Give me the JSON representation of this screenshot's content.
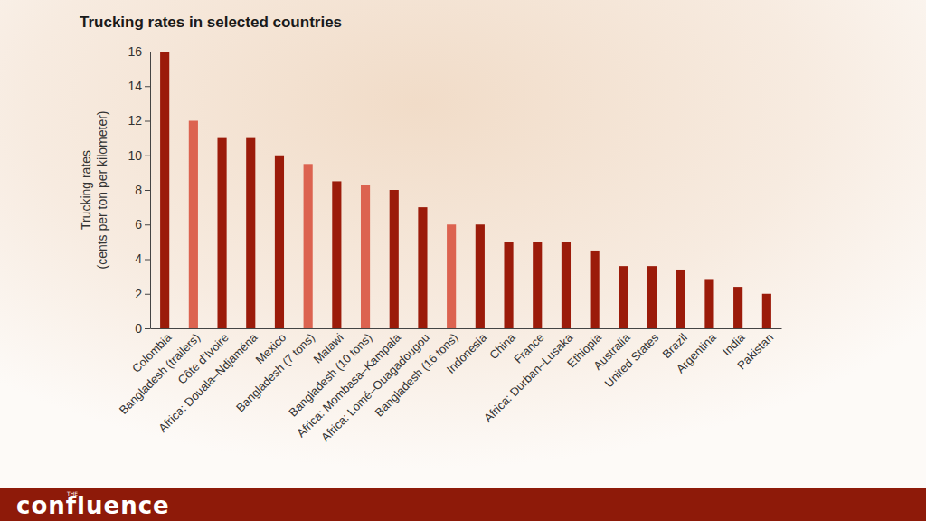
{
  "chart_data": {
    "type": "bar",
    "title": "Trucking rates in selected countries",
    "ylabel": [
      "Trucking rates",
      "(cents per ton per kilometer)"
    ],
    "categories": [
      "Colombia",
      "Bangladesh (trailers)",
      "Côte d’Ivoire",
      "Africa: Douala–Ndjaména",
      "Mexico",
      "Bangladesh (7 tons)",
      "Malawi",
      "Bangladesh (10 tons)",
      "Africa: Mombasa–Kampala",
      "Africa: Lomé–Ouagadougou",
      "Bangladesh (16 tons)",
      "Indonesia",
      "China",
      "France",
      "Africa: Durban–Lusaka",
      "Ethiopia",
      "Australia",
      "United States",
      "Brazil",
      "Argentina",
      "India",
      "Pakistan"
    ],
    "values": [
      16,
      12,
      11,
      11,
      10,
      9.5,
      8.5,
      8.3,
      8,
      7,
      6,
      6,
      5,
      5,
      5,
      4.5,
      3.6,
      3.6,
      3.4,
      2.8,
      2.4,
      2
    ],
    "colors": [
      "#9b1b0a",
      "#dc6350",
      "#9b1b0a",
      "#9b1b0a",
      "#9b1b0a",
      "#dc6350",
      "#9b1b0a",
      "#dc6350",
      "#9b1b0a",
      "#9b1b0a",
      "#dc6350",
      "#9b1b0a",
      "#9b1b0a",
      "#9b1b0a",
      "#9b1b0a",
      "#9b1b0a",
      "#9b1b0a",
      "#9b1b0a",
      "#9b1b0a",
      "#9b1b0a",
      "#9b1b0a",
      "#9b1b0a"
    ],
    "ylim": [
      0,
      16
    ],
    "yticks": [
      0,
      2,
      4,
      6,
      8,
      10,
      12,
      14,
      16
    ],
    "grid": false
  },
  "footer": {
    "brand_prefix": "THE",
    "brand": "confluence"
  }
}
